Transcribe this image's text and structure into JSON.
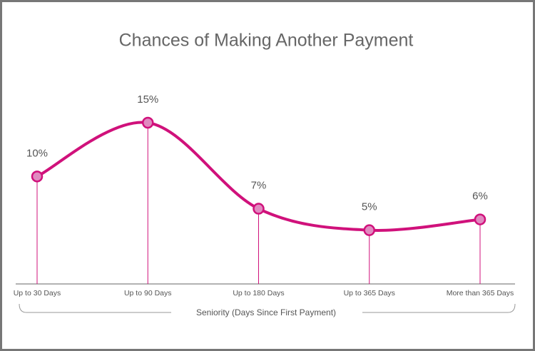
{
  "chart_data": {
    "type": "line",
    "title": "Chances of Making Another Payment",
    "x_label": "Seniority (Days Since First Payment)",
    "categories": [
      "Up to 30 Days",
      "Up to 90 Days",
      "Up to 180 Days",
      "Up to 365 Days",
      "More than 365 Days"
    ],
    "values": [
      10,
      15,
      7,
      5,
      6
    ],
    "value_labels": [
      "10%",
      "15%",
      "7%",
      "5%",
      "6%"
    ],
    "color": "#d0117b",
    "marker_color": "#e08ac0"
  }
}
